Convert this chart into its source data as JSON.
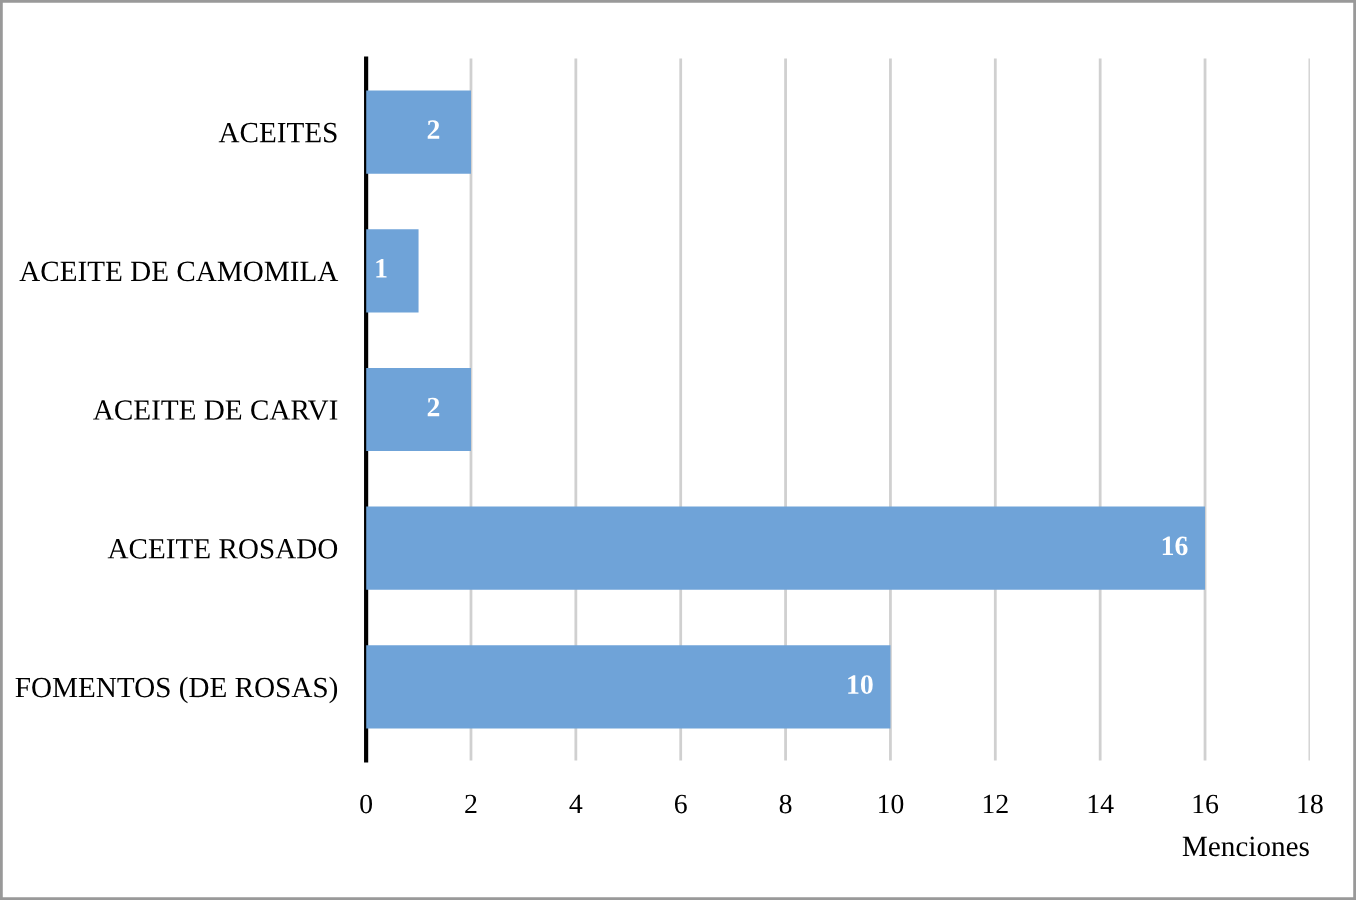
{
  "chart_data": {
    "type": "bar",
    "orientation": "horizontal",
    "categories": [
      "ACEITES",
      "ACEITE DE CAMOMILA",
      "ACEITE DE CARVI",
      "ACEITE ROSADO",
      "FOMENTOS (DE ROSAS)"
    ],
    "values": [
      2,
      1,
      2,
      16,
      10
    ],
    "color": "#6fa3d8",
    "xlim": [
      0,
      18
    ],
    "xticks": [
      0,
      2,
      4,
      6,
      8,
      10,
      12,
      14,
      16,
      18
    ],
    "xlabel": "Menciones",
    "grid": "x",
    "data_labels": true,
    "legend": false
  }
}
